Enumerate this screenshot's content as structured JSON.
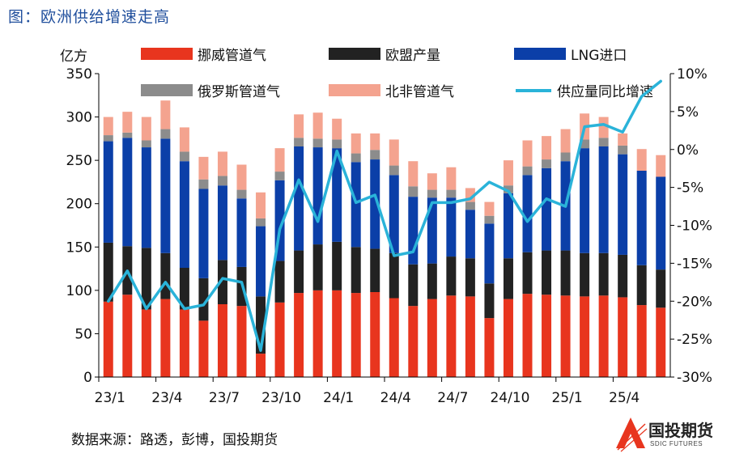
{
  "title": "图：欧洲供给增速走高",
  "source": "数据来源：路透，彭博，国投期货",
  "logo": {
    "name": "国投期货",
    "sub": "SDIC FUTURES"
  },
  "colors": {
    "norway": "#e8351e",
    "eu": "#222222",
    "lng": "#0b3fa8",
    "russia": "#8c8c8c",
    "nafrica": "#f4a38f",
    "growth": "#2ab3d9",
    "axis": "#000000"
  },
  "chart_data": {
    "type": "bar",
    "stacked": true,
    "title": "",
    "ylabel_left": "亿方",
    "ylim_left": [
      0,
      350
    ],
    "yticks_left": [
      "0",
      "50",
      "100",
      "150",
      "200",
      "250",
      "300",
      "350"
    ],
    "ylim_right": [
      -30,
      10
    ],
    "yticks_right": [
      "-30%",
      "-25%",
      "-20%",
      "-15%",
      "-10%",
      "-5%",
      "0%",
      "5%",
      "10%"
    ],
    "xtick_labels": [
      "23/1",
      "23/4",
      "23/7",
      "23/10",
      "24/1",
      "24/4",
      "24/7",
      "24/10",
      "25/1",
      "25/4"
    ],
    "xtick_every": 3,
    "categories": [
      "23/1",
      "23/2",
      "23/3",
      "23/4",
      "23/5",
      "23/6",
      "23/7",
      "23/8",
      "23/9",
      "23/10",
      "23/11",
      "23/12",
      "24/1",
      "24/2",
      "24/3",
      "24/4",
      "24/5",
      "24/6",
      "24/7",
      "24/8",
      "24/9",
      "24/10",
      "24/11",
      "24/12",
      "25/1",
      "25/2",
      "25/3",
      "25/4",
      "25/5",
      "25/6"
    ],
    "legend_position": "top",
    "series": [
      {
        "name": "挪威管道气",
        "key": "norway",
        "kind": "bar",
        "values": [
          87,
          95,
          78,
          90,
          78,
          65,
          84,
          82,
          27,
          86,
          97,
          100,
          100,
          97,
          98,
          91,
          82,
          90,
          94,
          93,
          68,
          90,
          96,
          95,
          94,
          93,
          94,
          92,
          83,
          80
        ]
      },
      {
        "name": "欧盟产量",
        "key": "eu",
        "kind": "bar",
        "values": [
          68,
          56,
          71,
          53,
          48,
          49,
          51,
          45,
          66,
          48,
          49,
          53,
          56,
          53,
          50,
          52,
          48,
          41,
          45,
          44,
          40,
          47,
          48,
          51,
          52,
          50,
          49,
          49,
          46,
          44
        ]
      },
      {
        "name": "LNG进口",
        "key": "lng",
        "kind": "bar",
        "values": [
          117,
          125,
          116,
          132,
          123,
          103,
          86,
          79,
          81,
          93,
          120,
          112,
          108,
          98,
          103,
          90,
          78,
          76,
          68,
          56,
          69,
          75,
          89,
          95,
          103,
          121,
          123,
          116,
          109,
          107
        ]
      },
      {
        "name": "俄罗斯管道气",
        "key": "russia",
        "kind": "bar",
        "values": [
          7,
          6,
          8,
          11,
          11,
          11,
          11,
          10,
          9,
          10,
          10,
          10,
          10,
          10,
          11,
          11,
          12,
          9,
          9,
          9,
          9,
          9,
          10,
          10,
          10,
          10,
          10,
          10,
          0,
          0
        ]
      },
      {
        "name": "北非管道气",
        "key": "nafrica",
        "kind": "bar",
        "values": [
          21,
          24,
          27,
          33,
          28,
          26,
          28,
          29,
          30,
          27,
          27,
          30,
          24,
          23,
          19,
          30,
          29,
          19,
          26,
          16,
          16,
          29,
          30,
          27,
          27,
          30,
          24,
          14,
          25,
          25
        ]
      },
      {
        "name": "供应量同比增速",
        "key": "growth",
        "kind": "line",
        "axis": "right",
        "values": [
          -20,
          -16,
          -21,
          -17.5,
          -21,
          -20.5,
          -17,
          -17.5,
          -26.5,
          -10.5,
          -4,
          -9.5,
          -0.2,
          -7,
          -6,
          -14,
          -13.5,
          -7,
          -7,
          -6.5,
          -4.3,
          -5.5,
          -9.5,
          -6.5,
          -7.5,
          3,
          3.3,
          2.3,
          7,
          9
        ]
      }
    ]
  }
}
